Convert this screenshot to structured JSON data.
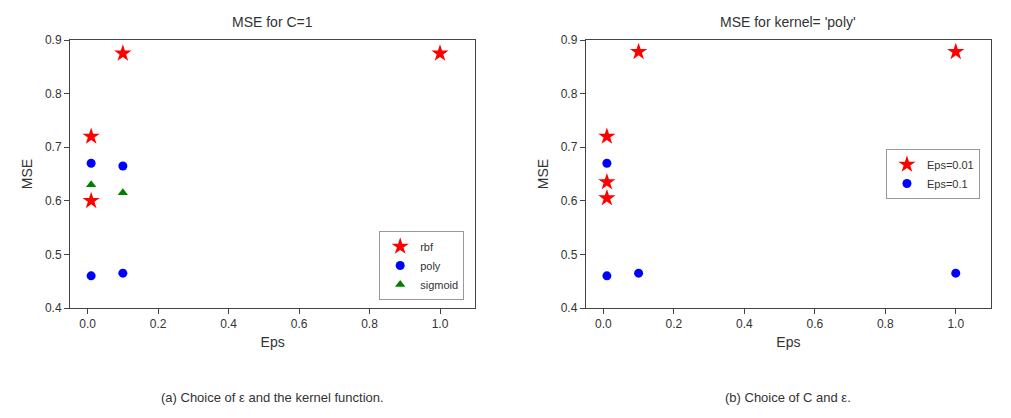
{
  "chart_data": [
    {
      "type": "scatter",
      "title": "MSE for C=1",
      "xlabel": "Eps",
      "ylabel": "MSE",
      "caption": "(a) Choice of ε and the kernel function.",
      "xlim": [
        -0.05,
        1.1
      ],
      "ylim": [
        0.4,
        0.9
      ],
      "xticks": [
        {
          "value": 0.0,
          "label": "0.0"
        },
        0.2,
        0.4,
        0.6,
        0.8,
        {
          "value": 1.0,
          "label": "1.0"
        }
      ],
      "yticks": [
        0.4,
        0.5,
        0.6,
        0.7,
        0.8,
        0.9
      ],
      "grid": false,
      "legend": "lower right",
      "series": [
        {
          "name": "rbf",
          "color": "red",
          "marker": "star",
          "x": [
            0.01,
            0.01,
            0.1,
            1.0
          ],
          "values": [
            0.72,
            0.6,
            0.875,
            0.875
          ]
        },
        {
          "name": "poly",
          "color": "blue",
          "marker": "circle",
          "x": [
            0.01,
            0.01,
            0.1,
            0.1
          ],
          "values": [
            0.67,
            0.46,
            0.665,
            0.465
          ]
        },
        {
          "name": "sigmoid",
          "color": "green",
          "marker": "triangle-up",
          "x": [
            0.01,
            0.1
          ],
          "values": [
            0.63,
            0.615
          ]
        }
      ]
    },
    {
      "type": "scatter",
      "title": "MSE for kernel= 'poly'",
      "xlabel": "Eps",
      "ylabel": "MSE",
      "caption": "(b) Choice of C and ε.",
      "xlim": [
        -0.05,
        1.1
      ],
      "ylim": [
        0.4,
        0.9
      ],
      "xticks": [
        {
          "value": 0.0,
          "label": "0.0"
        },
        0.2,
        0.4,
        0.6,
        0.8,
        {
          "value": 1.0,
          "label": "1.0"
        }
      ],
      "yticks": [
        0.4,
        0.5,
        0.6,
        0.7,
        0.8,
        0.9
      ],
      "grid": false,
      "legend": "center right",
      "series": [
        {
          "name": "Eps=0.01",
          "color": "red",
          "marker": "star",
          "x": [
            0.01,
            0.01,
            0.01,
            0.1,
            1.0
          ],
          "values": [
            0.72,
            0.635,
            0.605,
            0.878,
            0.878
          ]
        },
        {
          "name": "Eps=0.1",
          "color": "blue",
          "marker": "circle",
          "x": [
            0.01,
            0.01,
            0.1,
            1.0
          ],
          "values": [
            0.67,
            0.46,
            0.465,
            0.465
          ]
        }
      ]
    }
  ]
}
